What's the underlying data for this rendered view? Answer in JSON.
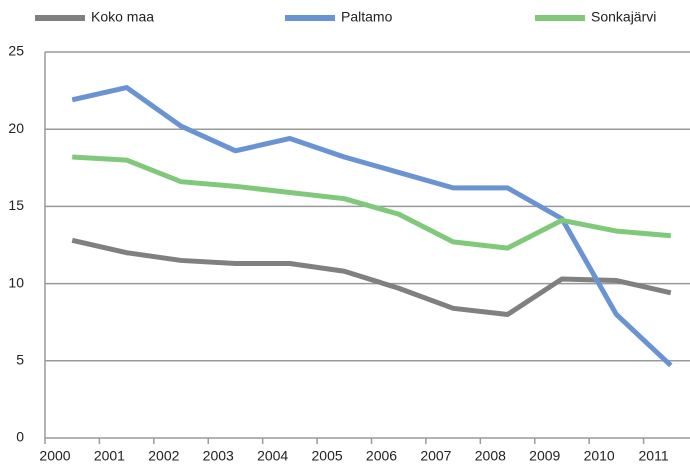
{
  "chart_data": {
    "type": "line",
    "x": [
      2000.5,
      2001.5,
      2002.5,
      2003.5,
      2004.5,
      2005.5,
      2006.5,
      2007.5,
      2008.5,
      2009.5,
      2010.5,
      2011.5
    ],
    "series": [
      {
        "name": "Koko maa",
        "color": "#808080",
        "values": [
          12.8,
          12.0,
          11.5,
          11.3,
          11.3,
          10.8,
          9.7,
          8.4,
          8.0,
          10.3,
          10.2,
          9.4
        ]
      },
      {
        "name": "Paltamo",
        "color": "#6a93d4",
        "values": [
          21.9,
          22.7,
          20.2,
          18.6,
          19.4,
          18.2,
          17.2,
          16.2,
          16.2,
          14.2,
          8.0,
          4.7
        ]
      },
      {
        "name": "Sonkajärvi",
        "color": "#80c97a",
        "values": [
          18.2,
          18.0,
          16.6,
          16.3,
          15.9,
          15.5,
          14.5,
          12.7,
          12.3,
          14.1,
          13.4,
          13.1
        ]
      }
    ],
    "xlim": [
      2000,
      2012
    ],
    "xticks": [
      2000,
      2001,
      2002,
      2003,
      2004,
      2005,
      2006,
      2007,
      2008,
      2009,
      2010,
      2011
    ],
    "ylim": [
      0,
      25
    ],
    "yticks": [
      0,
      5,
      10,
      15,
      20,
      25
    ],
    "grid": true
  }
}
